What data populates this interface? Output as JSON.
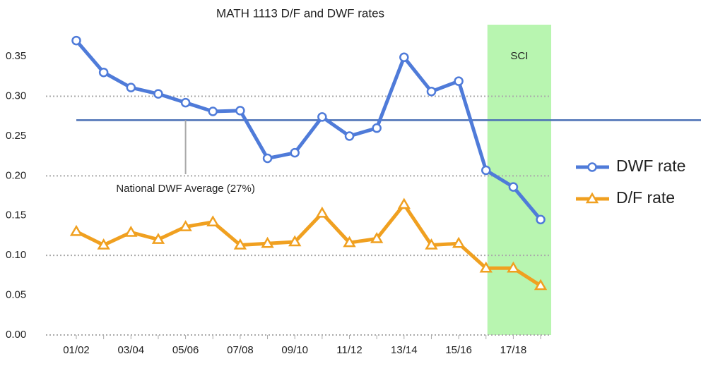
{
  "chart_data": {
    "type": "line",
    "title": "MATH 1113 D/F and DWF rates",
    "categories": [
      "01/02",
      null,
      "03/04",
      null,
      "05/06",
      null,
      "07/08",
      null,
      "09/10",
      null,
      "11/12",
      null,
      "13/14",
      null,
      "15/16",
      null,
      "17/18",
      null
    ],
    "series": [
      {
        "name": "DWF rate",
        "color": "#4f7bd9",
        "marker": "circle",
        "values": [
          0.37,
          0.33,
          0.311,
          0.303,
          0.292,
          0.281,
          0.282,
          0.222,
          0.229,
          0.274,
          0.25,
          0.26,
          0.349,
          0.306,
          0.319,
          0.207,
          0.186,
          0.145
        ]
      },
      {
        "name": "D/F rate",
        "color": "#f0a020",
        "marker": "triangle",
        "values": [
          0.13,
          0.113,
          0.129,
          0.12,
          0.136,
          0.142,
          0.113,
          0.115,
          0.117,
          0.153,
          0.116,
          0.121,
          0.164,
          0.113,
          0.115,
          0.084,
          0.084,
          0.062
        ]
      }
    ],
    "ylim": [
      0,
      0.39
    ],
    "yticks": [
      {
        "value": 0,
        "label": "0.00"
      },
      0.05,
      {
        "value": 0.1,
        "label": "0.10"
      },
      0.15,
      {
        "value": 0.2,
        "label": "0.20"
      },
      0.25,
      {
        "value": 0.3,
        "label": "0.30"
      },
      0.35
    ],
    "grid_lines": [
      0.1,
      0.2,
      0.3
    ],
    "reference_line": {
      "value": 0.27,
      "label": "National DWF Average (27%)",
      "color": "#4a6fb5"
    },
    "shaded_region": {
      "label": "SCI",
      "color": "#b8f5b0"
    },
    "legend": "right"
  }
}
